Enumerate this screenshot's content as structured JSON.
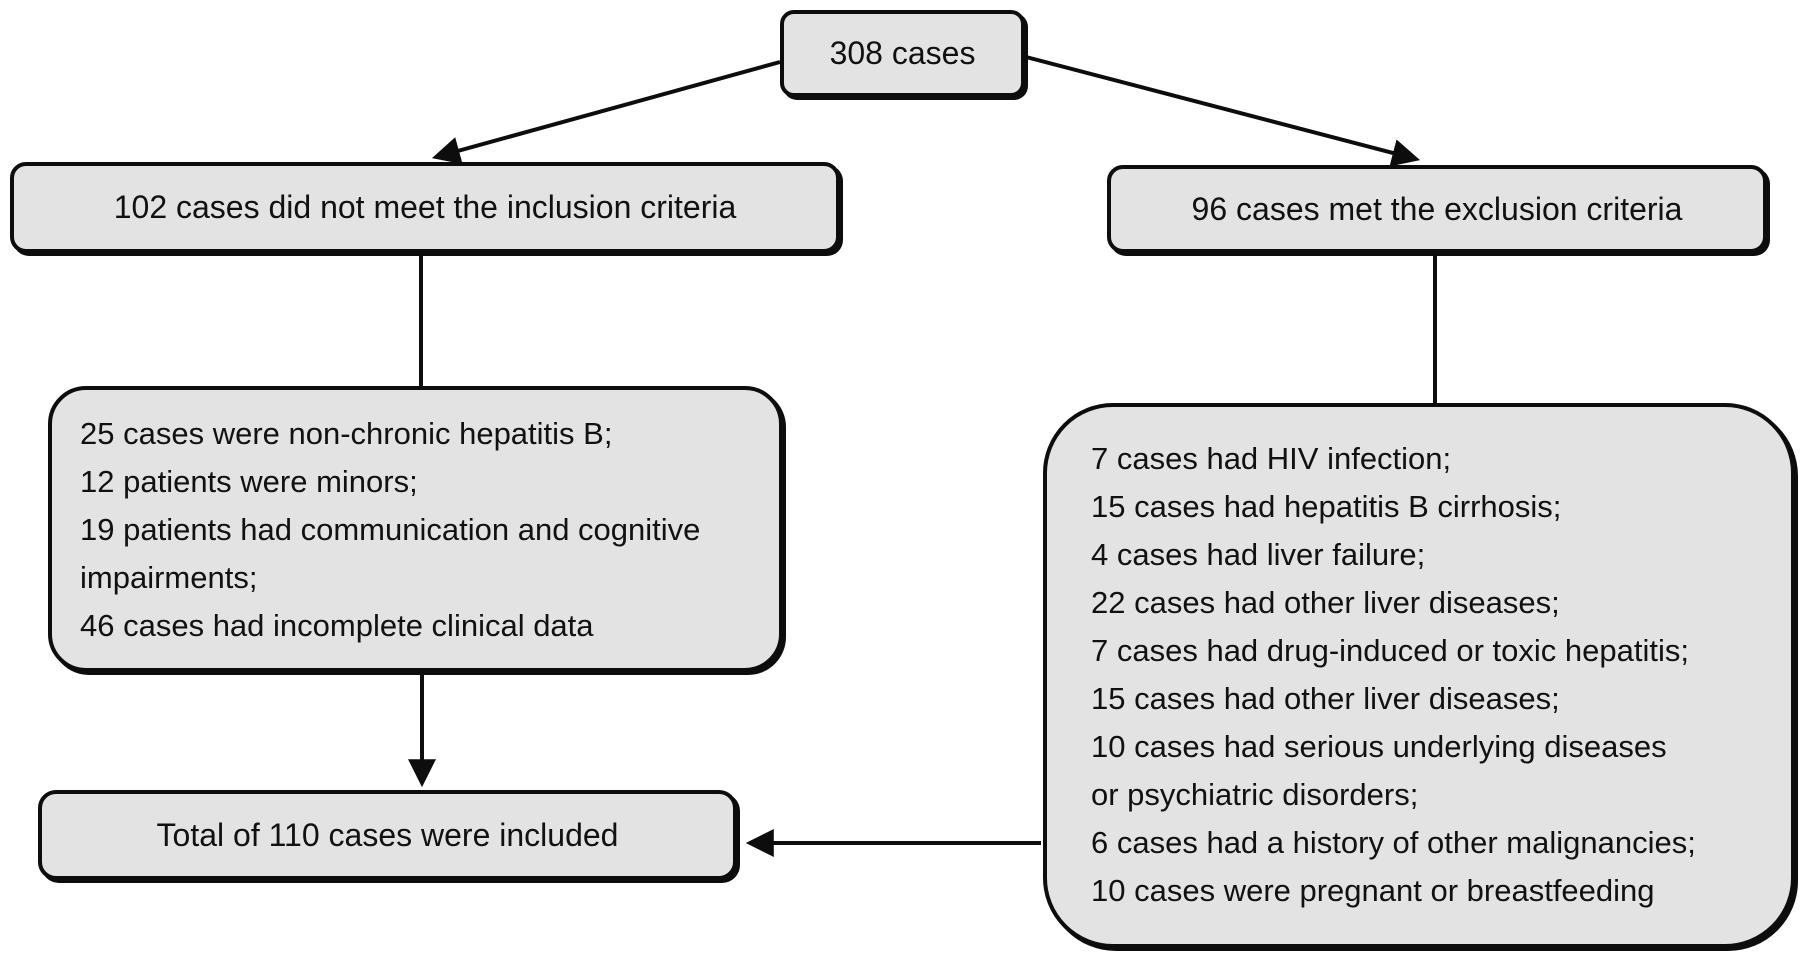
{
  "figure": {
    "colors": {
      "background": "#ffffff",
      "box_fill": "#e3e3e3",
      "box_border": "#0d0d0d",
      "text": "#111111"
    },
    "nodes": {
      "total": {
        "label": "308 cases"
      },
      "not_meeting_inclusion": {
        "label": "102 cases did not meet the inclusion criteria"
      },
      "meeting_exclusion": {
        "label": "96 cases met the exclusion criteria"
      },
      "inclusion_failure_reasons": {
        "lines": [
          "25 cases were non-chronic hepatitis B;",
          "12 patients were minors;",
          "19 patients had communication and cognitive",
          "impairments;",
          "46 cases had incomplete clinical data"
        ]
      },
      "exclusion_reasons": {
        "lines": [
          "7 cases had HIV infection;",
          "15 cases had hepatitis B cirrhosis;",
          "4 cases had liver failure;",
          "22 cases had other liver diseases;",
          "7 cases had drug-induced or toxic hepatitis;",
          "15 cases had other liver diseases;",
          "10 cases had serious underlying diseases",
          "or psychiatric disorders;",
          "6 cases had a history of other malignancies;",
          "10 cases were pregnant or breastfeeding"
        ]
      },
      "included_total": {
        "label": "Total of 110 cases were included"
      }
    },
    "edges": [
      {
        "from": "total",
        "to": "not_meeting_inclusion",
        "arrowhead": true
      },
      {
        "from": "total",
        "to": "meeting_exclusion",
        "arrowhead": true
      },
      {
        "from": "not_meeting_inclusion",
        "to": "inclusion_failure_reasons",
        "arrowhead": false
      },
      {
        "from": "meeting_exclusion",
        "to": "exclusion_reasons",
        "arrowhead": false
      },
      {
        "from": "inclusion_failure_reasons",
        "to": "included_total",
        "arrowhead": true
      },
      {
        "from": "exclusion_reasons",
        "to": "included_total",
        "arrowhead": true
      }
    ]
  }
}
